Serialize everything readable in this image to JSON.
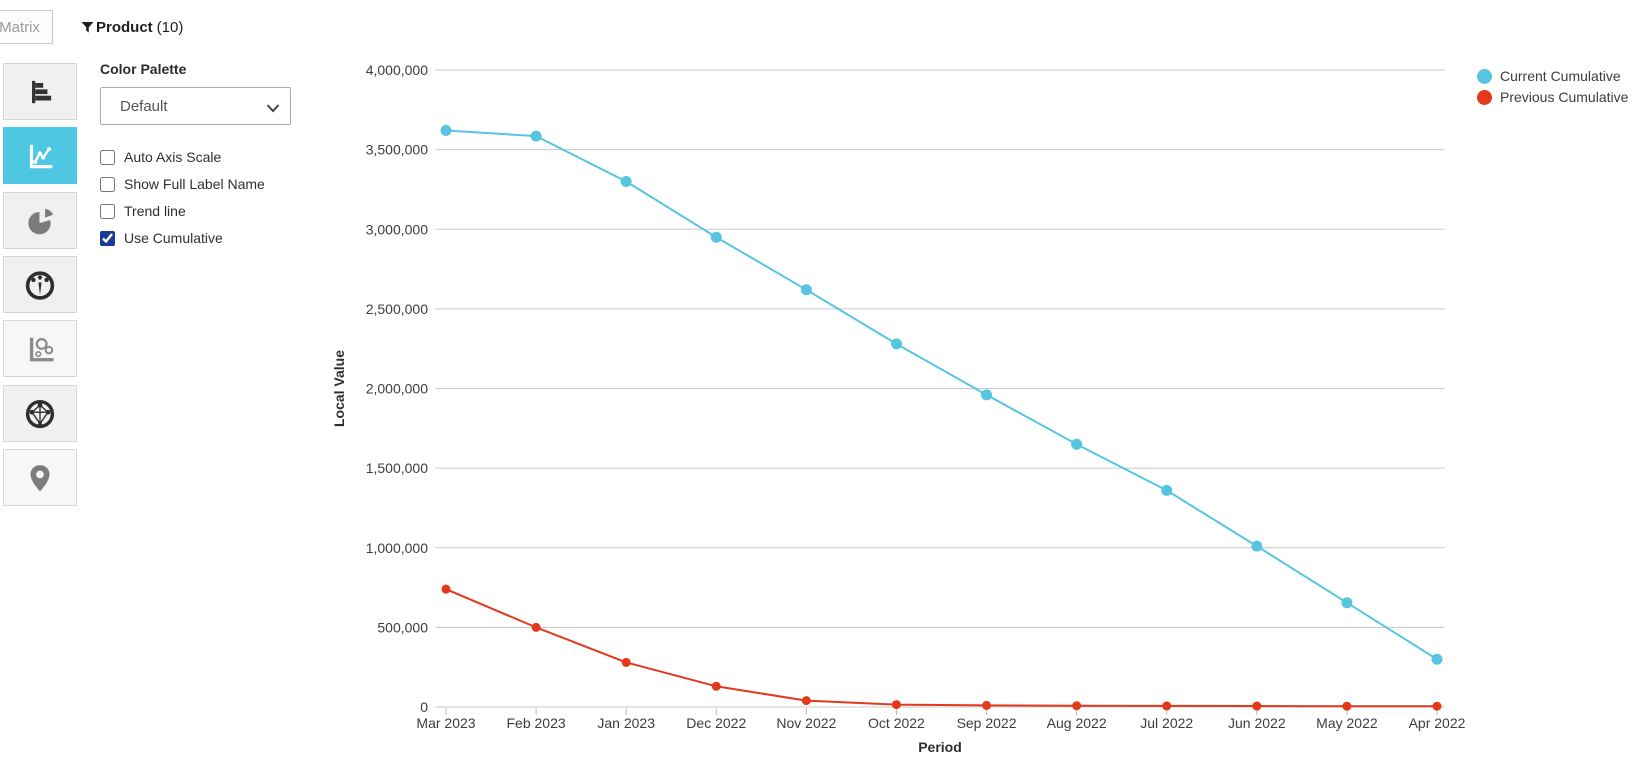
{
  "window": {
    "matrix_button_label": "Matrix"
  },
  "filter_bar": {
    "filter_name": "Product",
    "filter_count": "(10)"
  },
  "sidebar": {
    "selected_item": "line-chart",
    "items": [
      {
        "icon": "horizontal-bar-chart-icon"
      },
      {
        "icon": "line-chart-icon"
      },
      {
        "icon": "pie-chart-icon"
      },
      {
        "icon": "gauge-chart-icon"
      },
      {
        "icon": "scatter-chart-icon"
      },
      {
        "icon": "radar-chart-icon"
      },
      {
        "icon": "map-pin-icon"
      }
    ]
  },
  "settings": {
    "color_palette_label": "Color Palette",
    "palette_value": "Default",
    "checkboxes": [
      {
        "label": "Auto Axis Scale",
        "checked": false
      },
      {
        "label": "Show Full Label Name",
        "checked": false
      },
      {
        "label": "Trend line",
        "checked": false
      },
      {
        "label": "Use Cumulative",
        "checked": true
      }
    ],
    "checkbox_accent_color": "#1a3c96"
  },
  "chart_data": {
    "type": "line",
    "title": "",
    "xlabel": "Period",
    "ylabel": "Local Value",
    "categories": [
      "Mar 2023",
      "Feb 2023",
      "Jan 2023",
      "Dec 2022",
      "Nov 2022",
      "Oct 2022",
      "Sep 2022",
      "Aug 2022",
      "Jul 2022",
      "Jun 2022",
      "May 2022",
      "Apr 2022"
    ],
    "series": [
      {
        "name": "Current Cumulative",
        "color": "#57c5e0",
        "values": [
          3620000,
          3585000,
          3300000,
          2950000,
          2620000,
          2280000,
          1960000,
          1650000,
          1360000,
          1010000,
          655000,
          300000
        ]
      },
      {
        "name": "Previous Cumulative",
        "color": "#e2391b",
        "values": [
          740000,
          500000,
          280000,
          130000,
          40000,
          15000,
          10000,
          8000,
          7000,
          6000,
          5000,
          5000
        ]
      }
    ],
    "ylim": [
      0,
      4000000
    ],
    "ytick_interval": 500000,
    "grid": true,
    "legend_position": "top-right",
    "accent_selected_color": "#4dc7e2"
  }
}
